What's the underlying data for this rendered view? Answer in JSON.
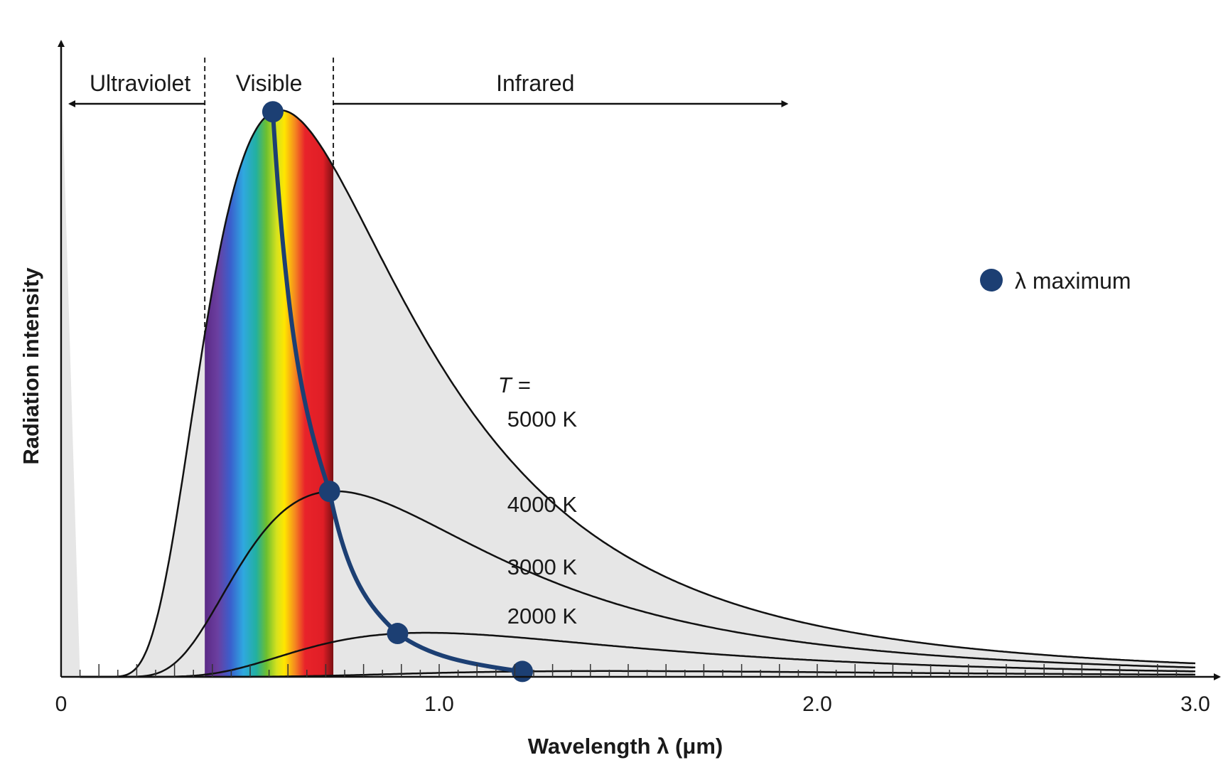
{
  "chart_data": {
    "type": "line",
    "xlabel": "Wavelength λ (μm)",
    "ylabel": "Radiation intensity",
    "xlim": [
      0,
      3.0
    ],
    "x_ticks": [
      "0",
      "1.0",
      "2.0",
      "3.0"
    ],
    "regions": [
      {
        "name": "Ultraviolet",
        "range": [
          0,
          0.38
        ]
      },
      {
        "name": "Visible",
        "range": [
          0.38,
          0.72
        ]
      },
      {
        "name": "Infrared",
        "range": [
          0.72,
          1.92
        ]
      }
    ],
    "temperature_prefix": "T =",
    "series": [
      {
        "name": "5000 K",
        "temperature": 5000
      },
      {
        "name": "4000 K",
        "temperature": 4000
      },
      {
        "name": "3000 K",
        "temperature": 3000
      },
      {
        "name": "2000 K",
        "temperature": 2000
      }
    ],
    "peak_line": {
      "legend": "λ maximum",
      "color": "#1c3f73",
      "points": [
        {
          "x": 0.56,
          "temperature": 5000
        },
        {
          "x": 0.71,
          "temperature": 4000
        },
        {
          "x": 0.89,
          "temperature": 3000
        },
        {
          "x": 1.22,
          "temperature": 2000
        }
      ]
    },
    "colors": {
      "plot_background": "#e6e6e6",
      "curves": "#111111",
      "peak_marker": "#1c3f73"
    }
  }
}
